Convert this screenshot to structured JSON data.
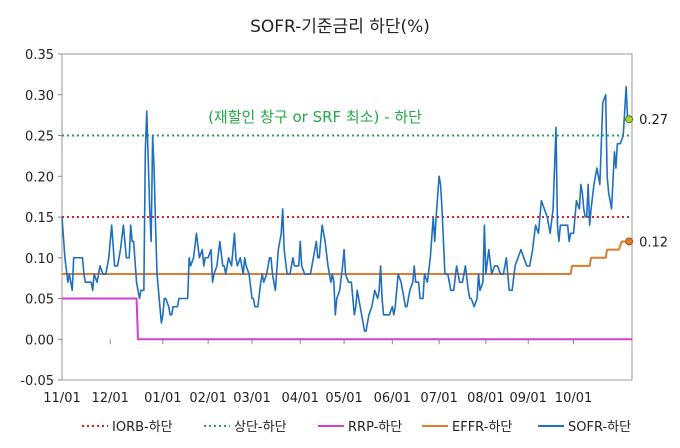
{
  "chart_data": {
    "type": "line",
    "title": "SOFR-기준금리 하단(%)",
    "xlabel": "",
    "ylabel": "",
    "ylim": [
      -0.05,
      0.35
    ],
    "yticks": [
      -0.05,
      0.0,
      0.05,
      0.1,
      0.15,
      0.2,
      0.25,
      0.3,
      0.35
    ],
    "ytick_labels": [
      "-0.05",
      "0.00",
      "0.05",
      "0.10",
      "0.15",
      "0.20",
      "0.25",
      "0.30",
      "0.35"
    ],
    "xlim": [
      0,
      390
    ],
    "xticks": [
      0,
      33,
      69,
      100,
      130,
      163,
      193,
      226,
      258,
      290,
      319,
      350
    ],
    "xtick_labels": [
      "11/01",
      "12/01",
      "01/01",
      "02/01",
      "03/01",
      "04/01",
      "05/01",
      "06/01",
      "07/01",
      "08/01",
      "09/01",
      "10/01"
    ],
    "legend_position": "bottom",
    "annotation": "(재할인 창구 or SRF 최소) - 하단",
    "series": [
      {
        "name": "IORB-하단",
        "color": "#e02020",
        "style": "dotted",
        "points": [
          [
            0,
            0.15
          ],
          [
            390,
            0.15
          ]
        ]
      },
      {
        "name": "상단-하단",
        "color": "#22aa44",
        "style": "dotted",
        "points": [
          [
            0,
            0.25
          ],
          [
            390,
            0.25
          ]
        ]
      },
      {
        "name": "RRP-하단",
        "color": "#d040d0",
        "style": "solid",
        "points": [
          [
            0,
            0.05
          ],
          [
            51,
            0.05
          ],
          [
            52,
            0.0
          ],
          [
            390,
            0.0
          ]
        ]
      },
      {
        "name": "EFFR-하단",
        "color": "#e07a30",
        "style": "solid",
        "points": [
          [
            0,
            0.08
          ],
          [
            348,
            0.08
          ],
          [
            349,
            0.09
          ],
          [
            361,
            0.09
          ],
          [
            362,
            0.1
          ],
          [
            372,
            0.1
          ],
          [
            373,
            0.11
          ],
          [
            381,
            0.11
          ],
          [
            383,
            0.12
          ],
          [
            388,
            0.12
          ]
        ]
      },
      {
        "name": "SOFR-하단",
        "color": "#1f6fbf",
        "style": "solid",
        "points": [
          [
            0,
            0.15
          ],
          [
            2,
            0.1
          ],
          [
            4,
            0.07
          ],
          [
            5,
            0.08
          ],
          [
            6,
            0.07
          ],
          [
            7,
            0.06
          ],
          [
            8,
            0.1
          ],
          [
            10,
            0.1
          ],
          [
            12,
            0.1
          ],
          [
            14,
            0.1
          ],
          [
            15,
            0.08
          ],
          [
            16,
            0.07
          ],
          [
            17,
            0.07
          ],
          [
            18,
            0.07
          ],
          [
            19,
            0.07
          ],
          [
            20,
            0.07
          ],
          [
            21,
            0.06
          ],
          [
            22,
            0.08
          ],
          [
            24,
            0.07
          ],
          [
            26,
            0.09
          ],
          [
            28,
            0.08
          ],
          [
            30,
            0.08
          ],
          [
            32,
            0.1
          ],
          [
            34,
            0.14
          ],
          [
            36,
            0.09
          ],
          [
            38,
            0.09
          ],
          [
            40,
            0.11
          ],
          [
            42,
            0.14
          ],
          [
            43,
            0.12
          ],
          [
            44,
            0.1
          ],
          [
            46,
            0.1
          ],
          [
            47,
            0.14
          ],
          [
            48,
            0.12
          ],
          [
            49,
            0.12
          ],
          [
            51,
            0.07
          ],
          [
            52,
            0.06
          ],
          [
            53,
            0.05
          ],
          [
            54,
            0.06
          ],
          [
            56,
            0.06
          ],
          [
            57,
            0.23
          ],
          [
            58,
            0.28
          ],
          [
            59,
            0.22
          ],
          [
            60,
            0.16
          ],
          [
            61,
            0.12
          ],
          [
            62,
            0.25
          ],
          [
            63,
            0.21
          ],
          [
            64,
            0.14
          ],
          [
            65,
            0.08
          ],
          [
            67,
            0.04
          ],
          [
            68,
            0.02
          ],
          [
            69,
            0.03
          ],
          [
            70,
            0.05
          ],
          [
            71,
            0.05
          ],
          [
            73,
            0.04
          ],
          [
            74,
            0.03
          ],
          [
            75,
            0.03
          ],
          [
            76,
            0.04
          ],
          [
            78,
            0.04
          ],
          [
            79,
            0.04
          ],
          [
            80,
            0.05
          ],
          [
            82,
            0.05
          ],
          [
            84,
            0.05
          ],
          [
            86,
            0.05
          ],
          [
            87,
            0.1
          ],
          [
            88,
            0.09
          ],
          [
            90,
            0.1
          ],
          [
            92,
            0.13
          ],
          [
            94,
            0.1
          ],
          [
            96,
            0.11
          ],
          [
            97,
            0.09
          ],
          [
            98,
            0.1
          ],
          [
            100,
            0.1
          ],
          [
            102,
            0.11
          ],
          [
            103,
            0.07
          ],
          [
            104,
            0.08
          ],
          [
            106,
            0.09
          ],
          [
            108,
            0.12
          ],
          [
            110,
            0.09
          ],
          [
            111,
            0.09
          ],
          [
            112,
            0.08
          ],
          [
            114,
            0.1
          ],
          [
            116,
            0.09
          ],
          [
            118,
            0.13
          ],
          [
            119,
            0.1
          ],
          [
            120,
            0.09
          ],
          [
            122,
            0.1
          ],
          [
            124,
            0.08
          ],
          [
            125,
            0.1
          ],
          [
            126,
            0.09
          ],
          [
            128,
            0.08
          ],
          [
            130,
            0.05
          ],
          [
            131,
            0.05
          ],
          [
            132,
            0.04
          ],
          [
            134,
            0.04
          ],
          [
            136,
            0.07
          ],
          [
            137,
            0.08
          ],
          [
            138,
            0.07
          ],
          [
            140,
            0.08
          ],
          [
            142,
            0.1
          ],
          [
            143,
            0.1
          ],
          [
            144,
            0.08
          ],
          [
            146,
            0.06
          ],
          [
            148,
            0.11
          ],
          [
            150,
            0.13
          ],
          [
            151,
            0.16
          ],
          [
            152,
            0.11
          ],
          [
            154,
            0.08
          ],
          [
            156,
            0.08
          ],
          [
            158,
            0.1
          ],
          [
            159,
            0.09
          ],
          [
            160,
            0.09
          ],
          [
            162,
            0.09
          ],
          [
            163,
            0.12
          ],
          [
            164,
            0.09
          ],
          [
            166,
            0.08
          ],
          [
            168,
            0.08
          ],
          [
            170,
            0.08
          ],
          [
            172,
            0.1
          ],
          [
            174,
            0.12
          ],
          [
            175,
            0.1
          ],
          [
            176,
            0.1
          ],
          [
            178,
            0.14
          ],
          [
            179,
            0.13
          ],
          [
            180,
            0.12
          ],
          [
            182,
            0.09
          ],
          [
            184,
            0.07
          ],
          [
            185,
            0.08
          ],
          [
            186,
            0.07
          ],
          [
            187,
            0.03
          ],
          [
            188,
            0.05
          ],
          [
            190,
            0.06
          ],
          [
            192,
            0.09
          ],
          [
            193,
            0.11
          ],
          [
            194,
            0.08
          ],
          [
            196,
            0.07
          ],
          [
            198,
            0.07
          ],
          [
            200,
            0.03
          ],
          [
            201,
            0.04
          ],
          [
            202,
            0.06
          ],
          [
            204,
            0.04
          ],
          [
            206,
            0.02
          ],
          [
            207,
            0.01
          ],
          [
            208,
            0.01
          ],
          [
            210,
            0.03
          ],
          [
            212,
            0.04
          ],
          [
            214,
            0.06
          ],
          [
            216,
            0.05
          ],
          [
            217,
            0.06
          ],
          [
            218,
            0.09
          ],
          [
            219,
            0.05
          ],
          [
            220,
            0.03
          ],
          [
            222,
            0.03
          ],
          [
            224,
            0.03
          ],
          [
            226,
            0.04
          ],
          [
            227,
            0.03
          ],
          [
            228,
            0.04
          ],
          [
            230,
            0.08
          ],
          [
            232,
            0.07
          ],
          [
            234,
            0.05
          ],
          [
            235,
            0.04
          ],
          [
            236,
            0.04
          ],
          [
            238,
            0.06
          ],
          [
            240,
            0.07
          ],
          [
            241,
            0.09
          ],
          [
            242,
            0.07
          ],
          [
            244,
            0.07
          ],
          [
            245,
            0.05
          ],
          [
            247,
            0.05
          ],
          [
            248,
            0.08
          ],
          [
            250,
            0.07
          ],
          [
            252,
            0.1
          ],
          [
            254,
            0.15
          ],
          [
            255,
            0.12
          ],
          [
            256,
            0.15
          ],
          [
            258,
            0.2
          ],
          [
            259,
            0.19
          ],
          [
            260,
            0.16
          ],
          [
            262,
            0.08
          ],
          [
            264,
            0.08
          ],
          [
            265,
            0.07
          ],
          [
            266,
            0.06
          ],
          [
            268,
            0.06
          ],
          [
            270,
            0.09
          ],
          [
            271,
            0.08
          ],
          [
            272,
            0.07
          ],
          [
            274,
            0.07
          ],
          [
            276,
            0.09
          ],
          [
            278,
            0.06
          ],
          [
            279,
            0.05
          ],
          [
            280,
            0.05
          ],
          [
            282,
            0.04
          ],
          [
            284,
            0.05
          ],
          [
            285,
            0.08
          ],
          [
            286,
            0.06
          ],
          [
            288,
            0.07
          ],
          [
            289,
            0.14
          ],
          [
            290,
            0.08
          ],
          [
            292,
            0.11
          ],
          [
            294,
            0.08
          ],
          [
            296,
            0.09
          ],
          [
            298,
            0.09
          ],
          [
            300,
            0.08
          ],
          [
            302,
            0.08
          ],
          [
            304,
            0.1
          ],
          [
            306,
            0.06
          ],
          [
            308,
            0.06
          ],
          [
            310,
            0.09
          ],
          [
            312,
            0.1
          ],
          [
            314,
            0.11
          ],
          [
            316,
            0.1
          ],
          [
            318,
            0.09
          ],
          [
            320,
            0.09
          ],
          [
            322,
            0.11
          ],
          [
            324,
            0.14
          ],
          [
            326,
            0.13
          ],
          [
            328,
            0.17
          ],
          [
            330,
            0.16
          ],
          [
            332,
            0.15
          ],
          [
            334,
            0.13
          ],
          [
            336,
            0.16
          ],
          [
            338,
            0.26
          ],
          [
            339,
            0.14
          ],
          [
            340,
            0.12
          ],
          [
            341,
            0.14
          ],
          [
            342,
            0.14
          ],
          [
            344,
            0.14
          ],
          [
            346,
            0.14
          ],
          [
            347,
            0.12
          ],
          [
            348,
            0.13
          ],
          [
            350,
            0.13
          ],
          [
            352,
            0.17
          ],
          [
            354,
            0.16
          ],
          [
            355,
            0.19
          ],
          [
            356,
            0.18
          ],
          [
            357,
            0.16
          ],
          [
            358,
            0.15
          ],
          [
            359,
            0.15
          ],
          [
            360,
            0.19
          ],
          [
            361,
            0.14
          ],
          [
            362,
            0.16
          ],
          [
            364,
            0.19
          ],
          [
            366,
            0.21
          ],
          [
            368,
            0.19
          ],
          [
            370,
            0.29
          ],
          [
            372,
            0.3
          ],
          [
            373,
            0.2
          ],
          [
            374,
            0.18
          ],
          [
            375,
            0.17
          ],
          [
            376,
            0.16
          ],
          [
            378,
            0.23
          ],
          [
            379,
            0.21
          ],
          [
            380,
            0.24
          ],
          [
            382,
            0.24
          ],
          [
            384,
            0.25
          ],
          [
            386,
            0.31
          ],
          [
            387,
            0.27
          ],
          [
            388,
            0.27
          ]
        ]
      }
    ],
    "end_markers": [
      {
        "series": "SOFR-하단",
        "x": 388,
        "value": 0.27,
        "label": "0.27"
      },
      {
        "series": "EFFR-하단",
        "x": 388,
        "value": 0.12,
        "label": "0.12"
      }
    ]
  }
}
